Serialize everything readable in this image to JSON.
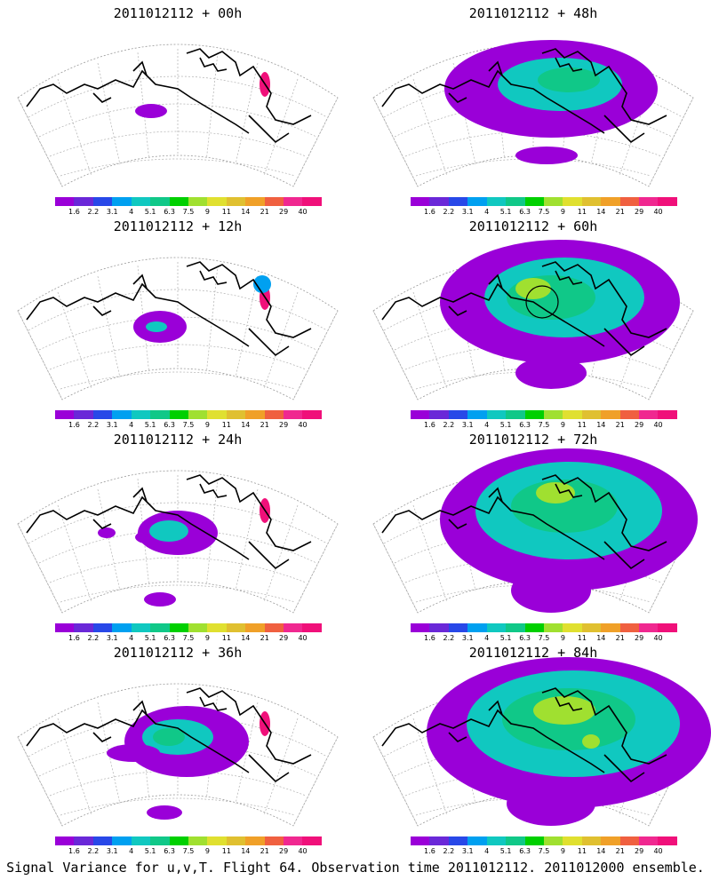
{
  "panels": [
    {
      "title": "2011012112 + 00h",
      "level": 0
    },
    {
      "title": "2011012112 + 48h",
      "level": 4
    },
    {
      "title": "2011012112 + 12h",
      "level": 1
    },
    {
      "title": "2011012112 + 60h",
      "level": 5
    },
    {
      "title": "2011012112 + 24h",
      "level": 2
    },
    {
      "title": "2011012112 + 72h",
      "level": 6
    },
    {
      "title": "2011012112 + 36h",
      "level": 3
    },
    {
      "title": "2011012112 + 84h",
      "level": 7
    }
  ],
  "colorbar": {
    "labels": [
      "1.6",
      "2.2",
      "3.1",
      "4",
      "5.1",
      "6.3",
      "7.5",
      "9",
      "11",
      "14",
      "21",
      "29",
      "40"
    ],
    "colors": [
      "#9a00d8",
      "#6a28d8",
      "#2848e8",
      "#00a0f0",
      "#10c8c0",
      "#10c888",
      "#00d000",
      "#a0e030",
      "#e0e030",
      "#e0c030",
      "#f0a028",
      "#f06040",
      "#f02890",
      "#f0107a"
    ]
  },
  "footer": "Signal Variance for u,v,T. Flight 64. Observation time 2011012112. 2011012000 ensemble."
}
